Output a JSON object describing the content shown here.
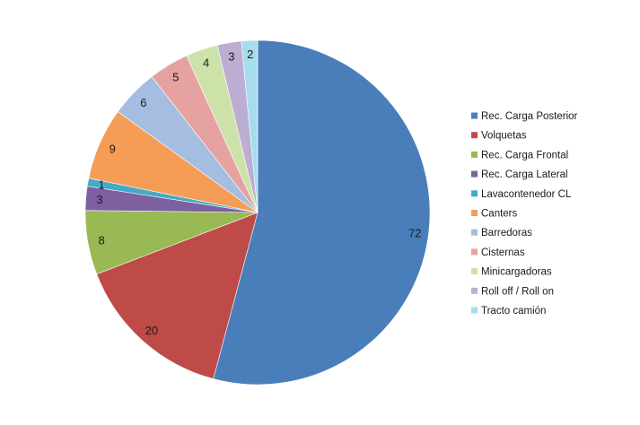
{
  "chart_data": {
    "type": "pie",
    "title": "",
    "categories": [
      "Rec. Carga Posterior",
      "Volquetas",
      "Rec. Carga Frontal",
      "Rec. Carga Lateral",
      "Lavacontenedor CL",
      "Canters",
      "Barredoras",
      "Cisternas",
      "Minicargadoras",
      "Roll off / Roll on",
      "Tracto camión"
    ],
    "values": [
      72,
      20,
      8,
      3,
      1,
      9,
      6,
      5,
      4,
      3,
      2
    ],
    "colors": [
      "#4a7ebb",
      "#be4b48",
      "#98b954",
      "#7d60a0",
      "#46aac5",
      "#f59d56",
      "#a5bde0",
      "#e5a2a1",
      "#cde2a9",
      "#bcaed2",
      "#a7dced"
    ],
    "legend_position": "right",
    "data_labels": true
  }
}
